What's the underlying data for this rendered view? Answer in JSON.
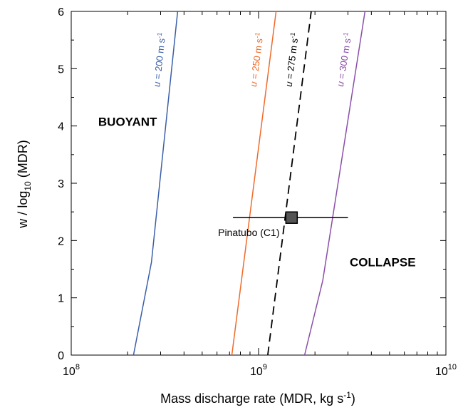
{
  "chart_data": {
    "type": "line",
    "xlabel": "Mass discharge rate (MDR, kg s",
    "xlabel_sup": "-1",
    "xlabel_end": ")",
    "ylabel": "w / log",
    "ylabel_sub": "10",
    "ylabel_end": " (MDR)",
    "xscale": "log",
    "xlim": [
      100000000,
      10000000000
    ],
    "ylim": [
      0,
      6
    ],
    "x_ticks": [
      {
        "base": "10",
        "exp": "8"
      },
      {
        "base": "10",
        "exp": "9"
      },
      {
        "base": "10",
        "exp": "10"
      }
    ],
    "y_ticks": [
      "0",
      "1",
      "2",
      "3",
      "4",
      "5",
      "6"
    ],
    "grid": false,
    "series": [
      {
        "name": "u = 200 m s-1",
        "label_var": "u",
        "label_rest": " = 200 m s",
        "label_sup": "-1",
        "color": "#3a5fa8",
        "dash": "solid",
        "points": [
          [
            215000000,
            0
          ],
          [
            268000000,
            1.62
          ],
          [
            370000000,
            6
          ]
        ]
      },
      {
        "name": "u = 250 m s-1",
        "label_var": "u",
        "label_rest": " = 250 m s",
        "label_sup": "-1",
        "color": "#ef6a2a",
        "dash": "solid",
        "points": [
          [
            720000000,
            0
          ],
          [
            1240000000,
            6
          ]
        ]
      },
      {
        "name": "u = 275 m s-1",
        "label_var": "u",
        "label_rest": " = 275 m s",
        "label_sup": "-1",
        "color": "#000000",
        "dash": "dashed",
        "points": [
          [
            1120000000,
            0
          ],
          [
            1910000000,
            6
          ]
        ]
      },
      {
        "name": "u = 300 m s-1",
        "label_var": "u",
        "label_rest": " = 300 m s",
        "label_sup": "-1",
        "color": "#8a4fa8",
        "dash": "solid",
        "points": [
          [
            1760000000,
            0
          ],
          [
            2200000000,
            1.3
          ],
          [
            3700000000,
            6
          ]
        ]
      }
    ],
    "point": {
      "label": "Pinatubo (C1)",
      "x": 1500000000,
      "y": 2.4,
      "x_err": [
        730000000,
        3000000000
      ],
      "color": "#555555"
    },
    "annotations": [
      {
        "text": "BUOYANT",
        "x": 200000000,
        "y": 4.0
      },
      {
        "text": "COLLAPSE",
        "x": 4600000000,
        "y": 1.55
      }
    ]
  }
}
